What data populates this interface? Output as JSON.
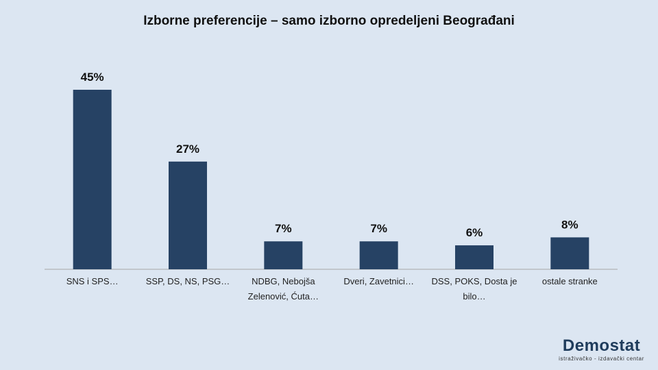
{
  "chart_data": {
    "type": "bar",
    "title": "Izborne preferencije – samo izborno opredeljeni Beograđani",
    "categories": [
      "SNS i SPS…",
      "SSP, DS, NS, PSG…",
      "NDBG, Nebojša Zelenović, Ćuta…",
      "Dveri, Zavetnici…",
      "DSS, POKS, Dosta je bilo…",
      "ostale stranke"
    ],
    "values": [
      45,
      27,
      7,
      7,
      6,
      8
    ],
    "value_labels": [
      "45%",
      "27%",
      "7%",
      "7%",
      "6%",
      "8%"
    ],
    "color": "#264264"
  },
  "logo": {
    "name": "Demostat",
    "tagline": "istraživačko - izdavački centar"
  }
}
